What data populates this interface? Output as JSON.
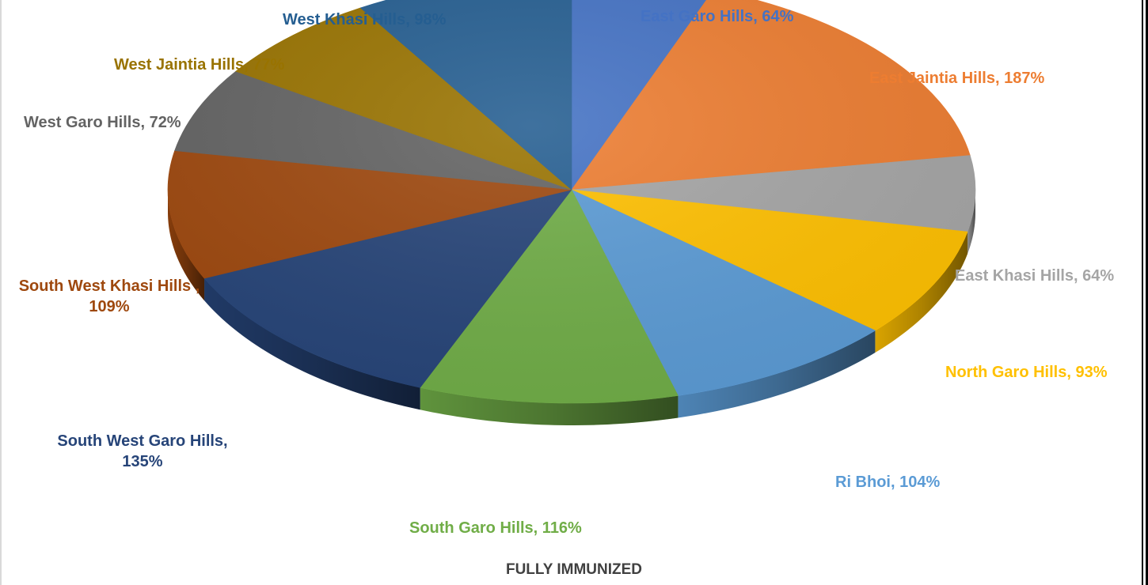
{
  "chart_data": {
    "type": "pie",
    "title": "FULLY IMMUNIZED",
    "series": [
      {
        "categories": [
          "East Garo Hills",
          "East Jaintia Hills",
          "East Khasi Hills",
          "North Garo Hills",
          "Ri Bhoi",
          "South Garo Hills",
          "South West Garo Hills",
          "South West Khasi Hills",
          "West Garo Hills",
          "West Jaintia Hills",
          "West Khasi Hills"
        ],
        "values": [
          64,
          187,
          64,
          93,
          104,
          116,
          135,
          109,
          72,
          77,
          98
        ],
        "colors": [
          "#4472C4",
          "#ED7D31",
          "#A5A5A5",
          "#FFC000",
          "#5B9BD5",
          "#70AD47",
          "#264478",
          "#9E480E",
          "#636363",
          "#997300",
          "#255E91"
        ]
      }
    ],
    "data_labels": [
      "East Garo Hills, 64%",
      "East Jaintia Hills, 187%",
      "East Khasi Hills, 64%",
      "North Garo Hills, 93%",
      "Ri Bhoi, 104%",
      "South Garo Hills, 116%",
      "South West Garo Hills,",
      "135%",
      "South West Khasi Hills ,",
      "109%",
      "West Garo Hills, 72%",
      "West Jaintia Hills, 77%",
      "West Khasi Hills, 98%"
    ],
    "label_colors": [
      "#4472C4",
      "#ED7D31",
      "#A5A5A5",
      "#FFC000",
      "#5B9BD5",
      "#70AD47",
      "#264478",
      "#264478",
      "#9E480E",
      "#9E480E",
      "#636363",
      "#997300",
      "#255E91"
    ],
    "style": "3d-pie"
  }
}
